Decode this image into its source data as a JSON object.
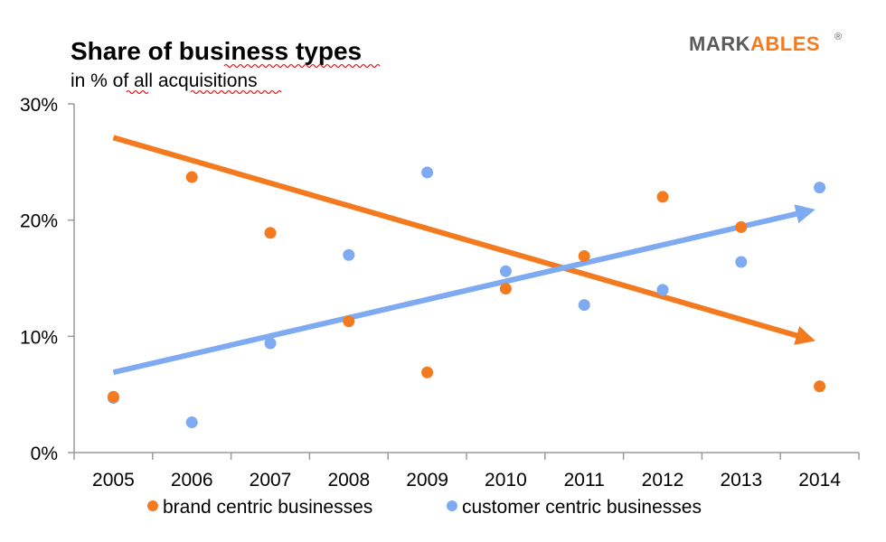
{
  "header": {
    "title": "Share of business types",
    "subtitle": "in % of all acquisitions",
    "logo": {
      "part1": "MARK",
      "part2": "ABLES",
      "registered": "®"
    }
  },
  "colors": {
    "brand_series": "#f47a1f",
    "customer_series": "#7eaaf2",
    "logo_dark": "#5a5a5a",
    "logo_accent": "#f47a1f"
  },
  "chart_data": {
    "type": "scatter",
    "title": "Share of business types",
    "subtitle": "in % of all acquisitions",
    "xlabel": "",
    "ylabel": "",
    "categories": [
      "2005",
      "2006",
      "2007",
      "2008",
      "2009",
      "2010",
      "2011",
      "2012",
      "2013",
      "2014"
    ],
    "yticks": [
      "0%",
      "10%",
      "20%",
      "30%"
    ],
    "ylim": [
      0,
      30
    ],
    "grid": false,
    "legend_position": "bottom",
    "series": [
      {
        "name": "brand centric businesses",
        "color": "#f47a1f",
        "values": [
          4.8,
          23.7,
          18.9,
          11.3,
          6.9,
          14.1,
          16.9,
          22.0,
          19.4,
          5.7
        ],
        "trend": {
          "start": 27.1,
          "end": 9.5
        }
      },
      {
        "name": "customer centric businesses",
        "color": "#7eaaf2",
        "values": [
          4.7,
          2.6,
          9.4,
          17.0,
          24.1,
          15.6,
          12.7,
          14.0,
          16.4,
          22.8
        ],
        "trend": {
          "start": 6.9,
          "end": 21.0
        }
      }
    ]
  }
}
